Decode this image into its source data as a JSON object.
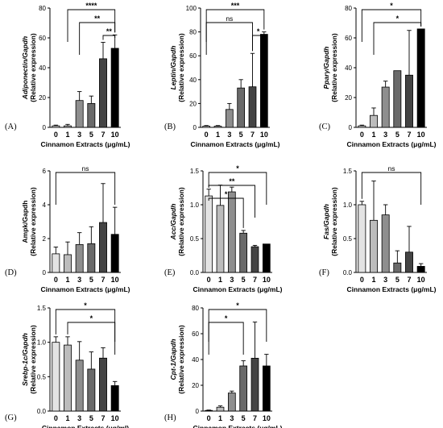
{
  "figure": {
    "panels": [
      {
        "id": "A",
        "label": "(A)",
        "gene": "Adiponectin",
        "suffix": "/Gapdh",
        "ylabel2": "(Relative expression)",
        "xlabel": "Cinnamon Extracts (μg/mL)"
      },
      {
        "id": "B",
        "label": "(B)",
        "gene": "Leptin",
        "suffix": "/Gapdh",
        "ylabel2": "(Relative expression)",
        "xlabel": "Cinnamon Extracts (μg/mL)"
      },
      {
        "id": "C",
        "label": "(C)",
        "gene": "Pparγ",
        "suffix": "/Gapdh",
        "ylabel2": "(Relative expression)",
        "xlabel": "Cinnamon Extracts (μg/mL)"
      },
      {
        "id": "D",
        "label": "(D)",
        "gene": "",
        "suffix": "Ampk/Gapdh",
        "ylabel2": "(Relative expression)",
        "xlabel": "Cinnamon Extracts (μg/mL)"
      },
      {
        "id": "E",
        "label": "(E)",
        "gene": "Acc",
        "suffix": "/Gapdh",
        "ylabel2": "(Relative expression)",
        "xlabel": "Cinnamon Extracts (μg/mL)"
      },
      {
        "id": "F",
        "label": "(F)",
        "gene": "Fas",
        "suffix": "/Gapdh",
        "ylabel2": "(Relative expression)",
        "xlabel": "Cinnamon Extracts (μg/mL)"
      },
      {
        "id": "G",
        "label": "(G)",
        "gene": "Srebp-1c",
        "suffix": "/Gapdh",
        "ylabel2": "(Relative expression)",
        "xlabel": "Cinnamon Extracts (μg/ml)"
      },
      {
        "id": "H",
        "label": "(H)",
        "gene": "Cpt-1",
        "suffix": "/Gapdh",
        "ylabel2": "(Relative expression)",
        "xlabel": "Cinnamon Extracts (μg/mL)"
      }
    ]
  },
  "chart_data": [
    {
      "panel": "A",
      "type": "bar",
      "categories": [
        "0",
        "1",
        "3",
        "5",
        "7",
        "10"
      ],
      "values": [
        1,
        1,
        18,
        16,
        46,
        53
      ],
      "errors": [
        0.5,
        1,
        6,
        5,
        11,
        9
      ],
      "ylim": [
        0,
        80
      ],
      "yticks": [
        0,
        20,
        40,
        60,
        80
      ],
      "colors": [
        "#e3e3e3",
        "#bcbcbc",
        "#8e8e8e",
        "#6a6a6a",
        "#444444",
        "#000000"
      ],
      "significance": [
        {
          "from": "1",
          "to": "10",
          "text": "****"
        },
        {
          "from": "3",
          "to": "10",
          "text": "**"
        },
        {
          "from": "7",
          "to": "10",
          "text": "**"
        }
      ]
    },
    {
      "panel": "B",
      "type": "bar",
      "categories": [
        "0",
        "1",
        "3",
        "5",
        "7",
        "10"
      ],
      "values": [
        1,
        1,
        15,
        33,
        34,
        78
      ],
      "errors": [
        0.5,
        0.5,
        5,
        7,
        28,
        2
      ],
      "ylim": [
        0,
        100
      ],
      "yticks": [
        0,
        20,
        40,
        60,
        80,
        100
      ],
      "colors": [
        "#e3e3e3",
        "#bcbcbc",
        "#8e8e8e",
        "#6a6a6a",
        "#444444",
        "#000000"
      ],
      "significance": [
        {
          "from": "0",
          "to": "10",
          "text": "***"
        },
        {
          "from": "0",
          "to": "7",
          "text": "ns"
        },
        {
          "from": "7",
          "to": "10",
          "text": "*"
        }
      ]
    },
    {
      "panel": "C",
      "type": "bar",
      "categories": [
        "0",
        "1",
        "3",
        "5",
        "7",
        "10"
      ],
      "values": [
        1,
        8,
        27,
        38,
        35,
        66
      ],
      "errors": [
        0.5,
        5,
        4,
        0,
        30,
        0
      ],
      "ylim": [
        0,
        80
      ],
      "yticks": [
        0,
        20,
        40,
        60,
        80
      ],
      "colors": [
        "#e3e3e3",
        "#bcbcbc",
        "#8e8e8e",
        "#6a6a6a",
        "#444444",
        "#000000"
      ],
      "significance": [
        {
          "from": "0",
          "to": "10",
          "text": "*"
        },
        {
          "from": "1",
          "to": "10",
          "text": "*"
        }
      ]
    },
    {
      "panel": "D",
      "type": "bar",
      "categories": [
        "0",
        "1",
        "3",
        "5",
        "7",
        "10"
      ],
      "values": [
        1.1,
        1.05,
        1.65,
        1.7,
        2.95,
        2.25
      ],
      "errors": [
        0.4,
        0.75,
        0.7,
        1.0,
        2.3,
        1.6
      ],
      "ylim": [
        0,
        6
      ],
      "yticks": [
        0,
        2,
        4,
        6
      ],
      "colors": [
        "#e3e3e3",
        "#bcbcbc",
        "#8e8e8e",
        "#6a6a6a",
        "#444444",
        "#000000"
      ],
      "significance": [
        {
          "from": "0",
          "to": "10",
          "text": "ns"
        }
      ]
    },
    {
      "panel": "E",
      "type": "bar",
      "categories": [
        "0",
        "1",
        "3",
        "5",
        "7",
        "10"
      ],
      "values": [
        1.13,
        0.99,
        1.19,
        0.58,
        0.38,
        0.42
      ],
      "errors": [
        0.1,
        0.3,
        0.07,
        0.04,
        0.02,
        0
      ],
      "ylim": [
        0,
        1.5
      ],
      "yticks": [
        0.0,
        0.5,
        1.0,
        1.5
      ],
      "colors": [
        "#e3e3e3",
        "#bcbcbc",
        "#8e8e8e",
        "#6a6a6a",
        "#444444",
        "#000000"
      ],
      "significance": [
        {
          "from": "0",
          "to": "10",
          "text": "*"
        },
        {
          "from": "0",
          "to": "7",
          "text": "**"
        },
        {
          "from": "0",
          "to": "5",
          "text": "*"
        }
      ]
    },
    {
      "panel": "F",
      "type": "bar",
      "categories": [
        "0",
        "1",
        "3",
        "5",
        "7",
        "10"
      ],
      "values": [
        1.0,
        0.77,
        0.85,
        0.14,
        0.3,
        0.09
      ],
      "errors": [
        0.05,
        0.58,
        0.15,
        0.18,
        0.38,
        0.04
      ],
      "ylim": [
        0,
        1.5
      ],
      "yticks": [
        0.0,
        0.5,
        1.0,
        1.5
      ],
      "colors": [
        "#e3e3e3",
        "#bcbcbc",
        "#8e8e8e",
        "#6a6a6a",
        "#444444",
        "#000000"
      ],
      "significance": [
        {
          "from": "0",
          "to": "10",
          "text": "ns"
        }
      ]
    },
    {
      "panel": "G",
      "type": "bar",
      "categories": [
        "0",
        "1",
        "3",
        "5",
        "7",
        "10"
      ],
      "values": [
        1.0,
        0.96,
        0.74,
        0.61,
        0.77,
        0.37
      ],
      "errors": [
        0.08,
        0.12,
        0.27,
        0.25,
        0.15,
        0.06
      ],
      "ylim": [
        0,
        1.5
      ],
      "yticks": [
        0.0,
        0.5,
        1.0,
        1.5
      ],
      "colors": [
        "#e3e3e3",
        "#bcbcbc",
        "#8e8e8e",
        "#6a6a6a",
        "#444444",
        "#000000"
      ],
      "significance": [
        {
          "from": "0",
          "to": "10",
          "text": "*"
        },
        {
          "from": "1",
          "to": "10",
          "text": "*"
        }
      ]
    },
    {
      "panel": "H",
      "type": "bar",
      "categories": [
        "0",
        "1",
        "3",
        "5",
        "7",
        "10"
      ],
      "values": [
        0.5,
        3,
        14,
        35,
        41,
        35
      ],
      "errors": [
        0.3,
        1,
        1.5,
        4,
        28,
        9
      ],
      "ylim": [
        0,
        80
      ],
      "yticks": [
        0,
        20,
        40,
        60,
        80
      ],
      "colors": [
        "#e3e3e3",
        "#bcbcbc",
        "#8e8e8e",
        "#6a6a6a",
        "#444444",
        "#000000"
      ],
      "significance": [
        {
          "from": "0",
          "to": "10",
          "text": "*"
        },
        {
          "from": "0",
          "to": "5",
          "text": "*"
        }
      ]
    }
  ]
}
